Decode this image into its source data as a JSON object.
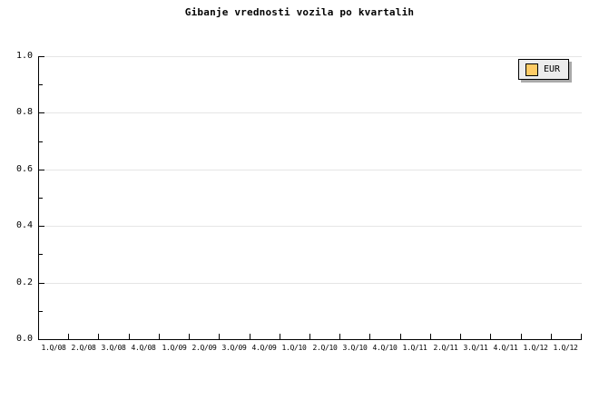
{
  "title": "Gibanje vrednosti vozila po kvartalih",
  "legend": {
    "label": "EUR",
    "swatch_color": "#ffcc66"
  },
  "chart_data": {
    "type": "line",
    "title": "Gibanje vrednosti vozila po kvartalih",
    "xlabel": "",
    "ylabel": "",
    "categories": [
      "1.Q/08",
      "2.Q/08",
      "3.Q/08",
      "4.Q/08",
      "1.Q/09",
      "2.Q/09",
      "3.Q/09",
      "4.Q/09",
      "1.Q/10",
      "2.Q/10",
      "3.Q/10",
      "4.Q/10",
      "1.Q/11",
      "2.Q/11",
      "3.Q/11",
      "4.Q/11",
      "1.Q/12",
      "1.Q/12"
    ],
    "series": [
      {
        "name": "EUR",
        "color": "#ffcc66",
        "values": []
      }
    ],
    "ylim": [
      0.0,
      1.0
    ],
    "y_tick_labels": [
      "0.0",
      "0.2",
      "0.4",
      "0.6",
      "0.8",
      "1.0"
    ],
    "y_minor_ticks": [
      0.1,
      0.3,
      0.5,
      0.7,
      0.9
    ],
    "grid": "horizontal-major",
    "legend_position": "top-right",
    "colors": {
      "background": "#ffffff",
      "axis": "#000000",
      "gridline": "#e5e5e5",
      "legend_background": "#ededed",
      "legend_shadow": "#a9a9a9"
    }
  }
}
